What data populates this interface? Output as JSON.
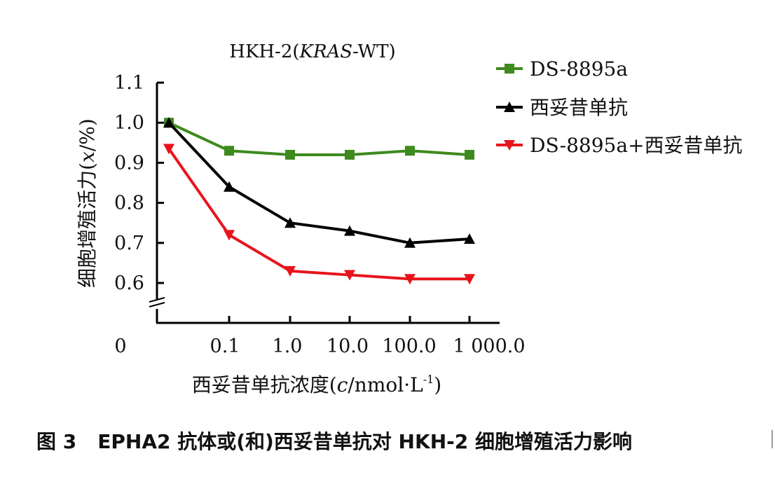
{
  "chart_data": {
    "type": "line",
    "title": "HKH-2(KRAS-WT)",
    "title_parts": {
      "before": "HKH-2(",
      "italic": "KRAS",
      "after": "-WT)"
    },
    "ylabel": "细胞增殖活力(x/%)",
    "ylabel_parts": {
      "before": "细胞增殖活力(",
      "italic": "x",
      "after": "/%)"
    },
    "xlabel": "西妥昔单抗浓度(c/nmol·L⁻¹)",
    "xlabel_parts": {
      "before": "西妥昔单抗浓度(",
      "italic": "c",
      "middle": "/nmol·L",
      "sup": "-1",
      "after": ")"
    },
    "x_tick_labels": [
      "0",
      "0.1",
      "1.0",
      "10.0",
      "100.0",
      "1 000.0"
    ],
    "x": [
      "0",
      "0.1",
      "1.0",
      "10.0",
      "100.0",
      "1 000.0"
    ],
    "ylim": [
      0.6,
      1.1
    ],
    "y_ticks": [
      0.6,
      0.7,
      0.8,
      0.9,
      1.0,
      1.1
    ],
    "y_tick_labels": [
      "0.6",
      "0.7",
      "0.8",
      "0.9",
      "1.0",
      "1.1"
    ],
    "y_axis_break": true,
    "grid": false,
    "legend_position": "top-right",
    "series": [
      {
        "name": "DS-8895a",
        "marker": "square",
        "color": "#3f8a1e",
        "values": [
          1.0,
          0.93,
          0.92,
          0.92,
          0.93,
          0.92
        ]
      },
      {
        "name": "西妥昔单抗",
        "marker": "triangle-up",
        "color": "#000000",
        "values": [
          1.0,
          0.84,
          0.75,
          0.73,
          0.7,
          0.71
        ]
      },
      {
        "name": "DS-8895a+西妥昔单抗",
        "marker": "triangle-down",
        "color": "#e8141c",
        "values": [
          0.935,
          0.72,
          0.63,
          0.62,
          0.61,
          0.61
        ]
      }
    ]
  },
  "caption": {
    "label": "图 3",
    "text": "EPHA2 抗体或(和)西妥昔单抗对 HKH-2 细胞增殖活力影响"
  }
}
